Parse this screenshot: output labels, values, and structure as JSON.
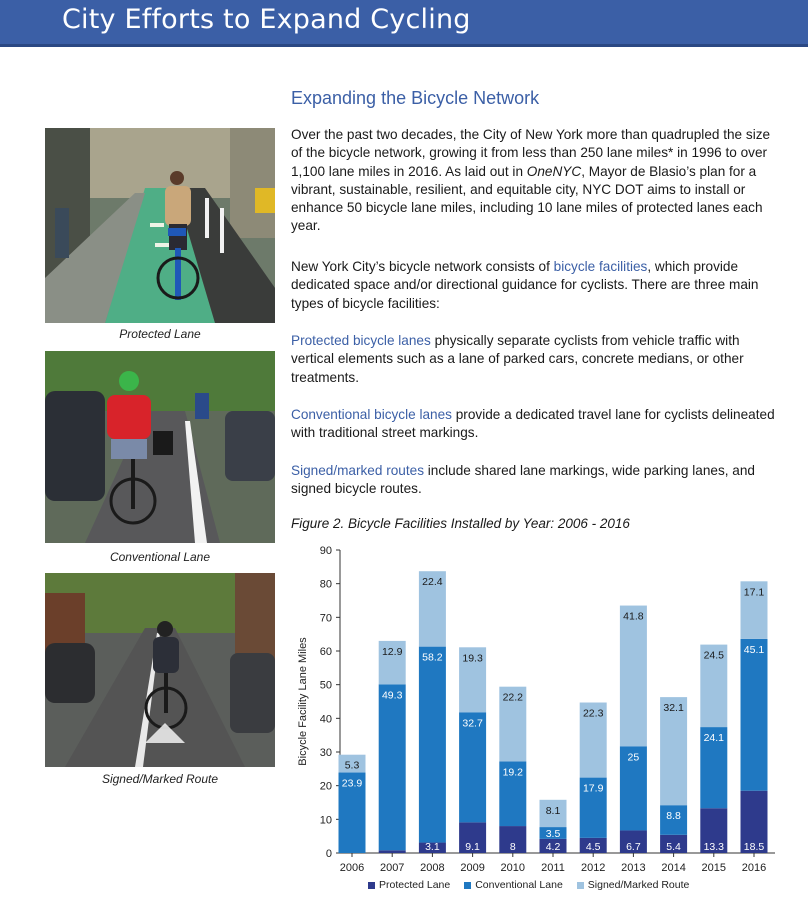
{
  "header": {
    "title": "City Efforts to Expand Cycling"
  },
  "photos": [
    {
      "caption": "Protected Lane",
      "icon": "protected-lane-photo"
    },
    {
      "caption": "Conventional Lane",
      "icon": "conventional-lane-photo"
    },
    {
      "caption": "Signed/Marked Route",
      "icon": "signed-route-photo"
    }
  ],
  "section": {
    "heading": "Expanding the Bicycle Network",
    "p1_a": "Over the past two decades, the City of New York more than quadrupled the size of the bicycle network, growing it from less than 250 lane miles* in 1996 to over 1,100 lane miles in 2016. As laid out in ",
    "p1_em": "OneNYC",
    "p1_b": ", Mayor de Blasio’s plan for a vibrant, sustainable, resilient, and equitable city, NYC DOT aims to install or enhance 50 bicycle lane miles, including 10 lane miles of protected lanes each year.",
    "p2_a": "New York City’s bicycle network consists of ",
    "p2_hl": "bicycle facilities",
    "p2_b": ", which provide dedicated space and/or directional guidance for cyclists. There are three main types of bicycle facilities:",
    "p3_hl": "Protected bicycle lanes",
    "p3_b": " physically separate cyclists from vehicle traffic with vertical elements such as a lane of parked cars, concrete medians, or other treatments.",
    "p4_hl": "Conventional bicycle lanes",
    "p4_b": " provide a dedicated travel lane for cyclists delineated with traditional street markings.",
    "p5_hl": "Signed/marked routes",
    "p5_b": " include shared lane markings, wide parking lanes, and signed bicycle routes."
  },
  "figure": {
    "title": "Figure 2. Bicycle Facilities Installed by Year: 2006 - 2016"
  },
  "chart_data": {
    "type": "bar",
    "stacked": true,
    "title": "Figure 2. Bicycle Facilities Installed by Year: 2006 - 2016",
    "xlabel": "",
    "ylabel": "Bicycle Facility Lane Miles",
    "ylim": [
      0,
      90
    ],
    "yticks": [
      0,
      10,
      20,
      30,
      40,
      50,
      60,
      70,
      80,
      90
    ],
    "categories": [
      "2006",
      "2007",
      "2008",
      "2009",
      "2010",
      "2011",
      "2012",
      "2013",
      "2014",
      "2015",
      "2016"
    ],
    "series": [
      {
        "name": "Protected Lane",
        "color": "#2e3a8c",
        "values": [
          null,
          0.8,
          3.1,
          9.1,
          8,
          4.2,
          4.5,
          6.7,
          5.4,
          13.3,
          18.5
        ]
      },
      {
        "name": "Conventional Lane",
        "color": "#1f78c1",
        "values": [
          23.9,
          49.3,
          58.2,
          32.7,
          19.2,
          3.5,
          17.9,
          25,
          8.8,
          24.1,
          45.1
        ]
      },
      {
        "name": "Signed/Marked Route",
        "color": "#9fc3e0",
        "values": [
          5.3,
          12.9,
          22.4,
          19.3,
          22.2,
          8.1,
          22.3,
          41.8,
          32.1,
          24.5,
          17.1
        ]
      }
    ],
    "grid": false,
    "legend": "bottom"
  }
}
